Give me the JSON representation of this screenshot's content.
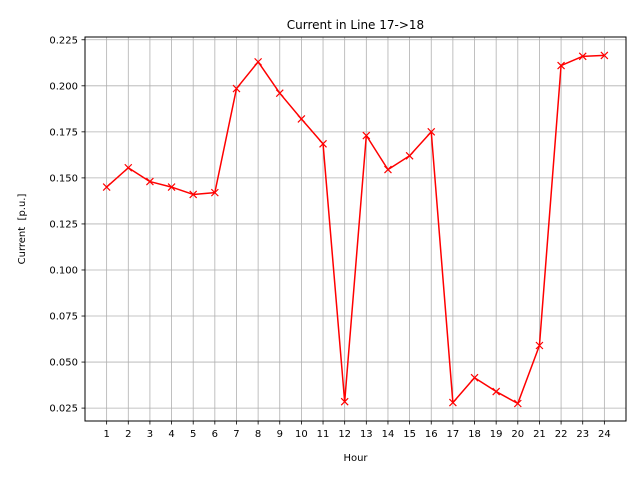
{
  "chart_data": {
    "type": "line",
    "title": "Current in Line 17->18",
    "xlabel": "Hour",
    "ylabel": "Current  [p.u.]",
    "grid": true,
    "xlim": [
      0,
      25
    ],
    "ylim": [
      0.018,
      0.2265
    ],
    "x_ticks": [
      1,
      2,
      3,
      4,
      5,
      6,
      7,
      8,
      9,
      10,
      11,
      12,
      13,
      14,
      15,
      16,
      17,
      18,
      19,
      20,
      21,
      22,
      23,
      24
    ],
    "x_tick_labels": [
      "1",
      "2",
      "3",
      "4",
      "5",
      "6",
      "7",
      "8",
      "9",
      "10",
      "11",
      "12",
      "13",
      "14",
      "15",
      "16",
      "17",
      "18",
      "19",
      "20",
      "21",
      "22",
      "23",
      "24"
    ],
    "y_ticks": [
      0.025,
      0.05,
      0.075,
      0.1,
      0.125,
      0.15,
      0.175,
      0.2,
      0.225
    ],
    "y_tick_labels": [
      "0.025",
      "0.050",
      "0.075",
      "0.100",
      "0.125",
      "0.150",
      "0.175",
      "0.200",
      "0.225"
    ],
    "series": [
      {
        "color": "#ff0000",
        "marker": "x",
        "x": [
          1,
          2,
          3,
          4,
          5,
          6,
          7,
          8,
          9,
          10,
          11,
          12,
          13,
          14,
          15,
          16,
          17,
          18,
          19,
          20,
          21,
          22,
          23,
          24
        ],
        "y": [
          0.145,
          0.1555,
          0.148,
          0.145,
          0.141,
          0.142,
          0.1985,
          0.213,
          0.196,
          0.182,
          0.1685,
          0.0285,
          0.173,
          0.1545,
          0.162,
          0.175,
          0.028,
          0.0415,
          0.034,
          0.0275,
          0.059,
          0.211,
          0.216,
          0.2165
        ]
      }
    ]
  }
}
